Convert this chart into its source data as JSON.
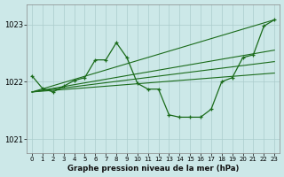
{
  "bg_color": "#cce8e8",
  "grid_color": "#aacccc",
  "line_color": "#1a6b1a",
  "title": "Graphe pression niveau de la mer (hPa)",
  "xlim": [
    -0.5,
    23.5
  ],
  "ylim": [
    1020.75,
    1023.35
  ],
  "yticks": [
    1021,
    1022,
    1023
  ],
  "xticks": [
    0,
    1,
    2,
    3,
    4,
    5,
    6,
    7,
    8,
    9,
    10,
    11,
    12,
    13,
    14,
    15,
    16,
    17,
    18,
    19,
    20,
    21,
    22,
    23
  ],
  "main_x": [
    0,
    1,
    2,
    3,
    4,
    5,
    6,
    7,
    8,
    9,
    10,
    11,
    12,
    13,
    14,
    15,
    16,
    17,
    18,
    19,
    20,
    21,
    22,
    23
  ],
  "main_y": [
    1022.1,
    1021.88,
    1021.82,
    1021.92,
    1022.02,
    1022.07,
    1022.38,
    1022.38,
    1022.68,
    1022.42,
    1021.97,
    1021.87,
    1021.87,
    1021.42,
    1021.38,
    1021.38,
    1021.38,
    1021.52,
    1022.0,
    1022.07,
    1022.42,
    1022.47,
    1022.97,
    1023.08
  ],
  "straight_lines": [
    {
      "x": [
        0,
        23
      ],
      "y": [
        1021.82,
        1023.08
      ]
    },
    {
      "x": [
        0,
        23
      ],
      "y": [
        1021.82,
        1022.55
      ]
    },
    {
      "x": [
        0,
        23
      ],
      "y": [
        1021.82,
        1022.35
      ]
    },
    {
      "x": [
        0,
        23
      ],
      "y": [
        1021.82,
        1022.15
      ]
    }
  ]
}
